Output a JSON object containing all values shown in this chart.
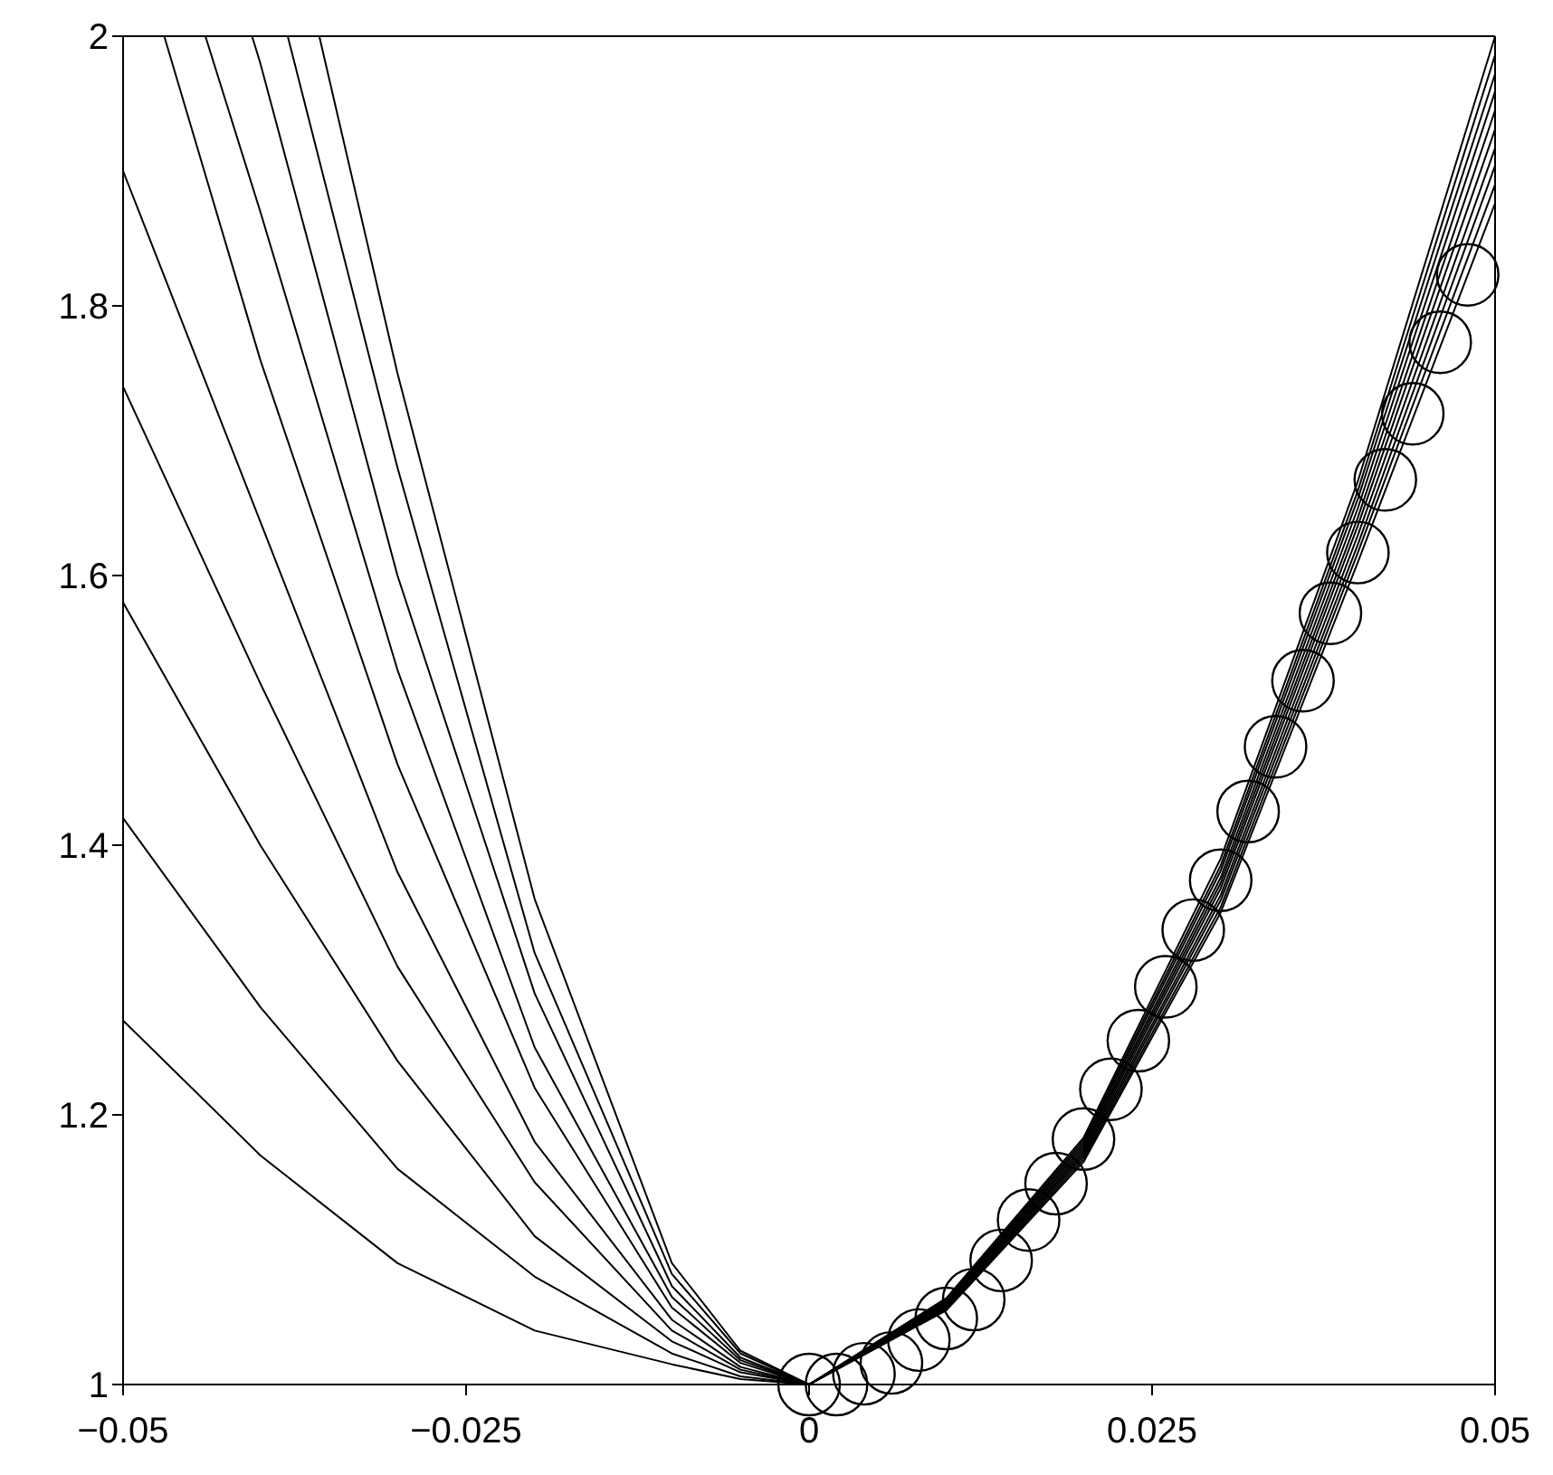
{
  "chart_data": {
    "type": "line",
    "xlim": [
      -0.05,
      0.05
    ],
    "ylim": [
      1,
      2
    ],
    "xticks": [
      {
        "value": -0.05,
        "label": "−0.05"
      },
      {
        "value": -0.025,
        "label": "−0.025"
      },
      0,
      0.025,
      0.05
    ],
    "yticks": [
      1,
      1.2,
      1.4,
      1.6,
      1.8,
      2
    ],
    "line_style": "solid",
    "series": [
      {
        "color": "#000000",
        "x": [
          -0.05,
          -0.04,
          -0.03,
          -0.02,
          -0.01,
          -0.005,
          0,
          0.01,
          0.02,
          0.03,
          0.04,
          0.05
        ],
        "values": [
          1.27,
          1.17,
          1.09,
          1.04,
          1.015,
          1.004,
          1.0,
          1.055,
          1.165,
          1.35,
          1.61,
          1.876
        ]
      },
      {
        "color": "#000000",
        "x": [
          -0.05,
          -0.04,
          -0.03,
          -0.02,
          -0.01,
          -0.005,
          0,
          0.01,
          0.02,
          0.03,
          0.04,
          0.05
        ],
        "values": [
          1.42,
          1.28,
          1.16,
          1.08,
          1.023,
          1.006,
          1.0,
          1.056,
          1.167,
          1.354,
          1.617,
          1.89
        ]
      },
      {
        "color": "#000000",
        "x": [
          -0.05,
          -0.04,
          -0.03,
          -0.02,
          -0.01,
          -0.005,
          0,
          0.01,
          0.02,
          0.03,
          0.04,
          0.05
        ],
        "values": [
          1.58,
          1.4,
          1.24,
          1.11,
          1.032,
          1.009,
          1.0,
          1.057,
          1.169,
          1.359,
          1.623,
          1.904
        ]
      },
      {
        "color": "#000000",
        "x": [
          -0.05,
          -0.04,
          -0.03,
          -0.02,
          -0.01,
          -0.005,
          0,
          0.01,
          0.02,
          0.03,
          0.04,
          0.05
        ],
        "values": [
          1.74,
          1.52,
          1.31,
          1.15,
          1.04,
          1.011,
          1.0,
          1.058,
          1.171,
          1.363,
          1.63,
          1.917
        ]
      },
      {
        "color": "#000000",
        "x": [
          -0.05,
          -0.04,
          -0.03,
          -0.02,
          -0.01,
          -0.005,
          0,
          0.01,
          0.02,
          0.03,
          0.04,
          0.05
        ],
        "values": [
          1.9,
          1.64,
          1.38,
          1.18,
          1.048,
          1.013,
          1.0,
          1.059,
          1.173,
          1.368,
          1.637,
          1.931
        ]
      },
      {
        "color": "#000000",
        "x": [
          -0.047,
          -0.04,
          -0.03,
          -0.02,
          -0.01,
          -0.005,
          0,
          0.01,
          0.02,
          0.03,
          0.04,
          0.05
        ],
        "values": [
          2.0,
          1.76,
          1.46,
          1.22,
          1.057,
          1.016,
          1.0,
          1.06,
          1.175,
          1.372,
          1.643,
          1.945
        ]
      },
      {
        "color": "#000000",
        "x": [
          -0.044,
          -0.04,
          -0.03,
          -0.02,
          -0.01,
          -0.005,
          0,
          0.01,
          0.02,
          0.03,
          0.04,
          0.05
        ],
        "values": [
          2.0,
          1.87,
          1.53,
          1.25,
          1.065,
          1.018,
          1.0,
          1.061,
          1.177,
          1.376,
          1.65,
          1.959
        ]
      },
      {
        "color": "#000000",
        "x": [
          -0.0406,
          -0.04,
          -0.03,
          -0.02,
          -0.01,
          -0.005,
          0,
          0.01,
          0.02,
          0.03,
          0.04,
          0.05
        ],
        "values": [
          2.0,
          1.98,
          1.6,
          1.29,
          1.073,
          1.02,
          1.0,
          1.062,
          1.179,
          1.381,
          1.657,
          1.972
        ]
      },
      {
        "color": "#000000",
        "x": [
          -0.038,
          -0.03,
          -0.02,
          -0.01,
          -0.005,
          0,
          0.01,
          0.02,
          0.03,
          0.04,
          0.05
        ],
        "values": [
          2.0,
          1.68,
          1.32,
          1.082,
          1.023,
          1.0,
          1.063,
          1.181,
          1.385,
          1.663,
          1.986
        ]
      },
      {
        "color": "#000000",
        "x": [
          -0.0357,
          -0.03,
          -0.02,
          -0.01,
          -0.005,
          0,
          0.01,
          0.02,
          0.03,
          0.04,
          0.05
        ],
        "values": [
          2.0,
          1.75,
          1.36,
          1.09,
          1.025,
          1.0,
          1.064,
          1.183,
          1.39,
          1.67,
          2.0
        ]
      },
      {
        "type": "scatter",
        "marker": "circle",
        "color": "#000000",
        "x": [
          0,
          0.002,
          0.004,
          0.006,
          0.008,
          0.01,
          0.012,
          0.014,
          0.016,
          0.018,
          0.02,
          0.022,
          0.024,
          0.026,
          0.028,
          0.03,
          0.032,
          0.034,
          0.036,
          0.038,
          0.04,
          0.042,
          0.044,
          0.046,
          0.048
        ],
        "values": [
          1.0,
          1.0,
          1.008,
          1.016,
          1.033,
          1.049,
          1.063,
          1.092,
          1.122,
          1.149,
          1.182,
          1.219,
          1.255,
          1.295,
          1.337,
          1.374,
          1.425,
          1.473,
          1.522,
          1.572,
          1.617,
          1.671,
          1.72,
          1.773,
          1.823
        ]
      }
    ]
  }
}
